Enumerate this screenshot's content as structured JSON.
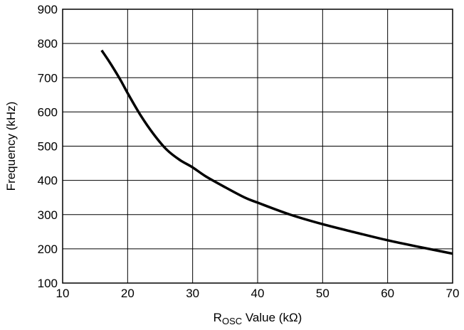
{
  "chart_data": {
    "type": "line",
    "title": "",
    "xlabel_main": "R",
    "xlabel_sub": "OSC",
    "xlabel_rest": " Value (kΩ)",
    "ylabel": "Frequency (kHz)",
    "xlim": [
      10,
      70
    ],
    "ylim": [
      100,
      900
    ],
    "xticks": [
      10,
      20,
      30,
      40,
      50,
      60,
      70
    ],
    "yticks": [
      100,
      200,
      300,
      400,
      500,
      600,
      700,
      800,
      900
    ],
    "grid": true,
    "series": [
      {
        "color": "#000000",
        "x": [
          16,
          17,
          18,
          19,
          20,
          22,
          24,
          26,
          28,
          30,
          32,
          35,
          38,
          40,
          45,
          50,
          55,
          60,
          65,
          70
        ],
        "y": [
          780,
          752,
          722,
          690,
          655,
          590,
          535,
          490,
          460,
          438,
          412,
          380,
          350,
          335,
          300,
          272,
          248,
          225,
          205,
          186
        ]
      }
    ]
  }
}
